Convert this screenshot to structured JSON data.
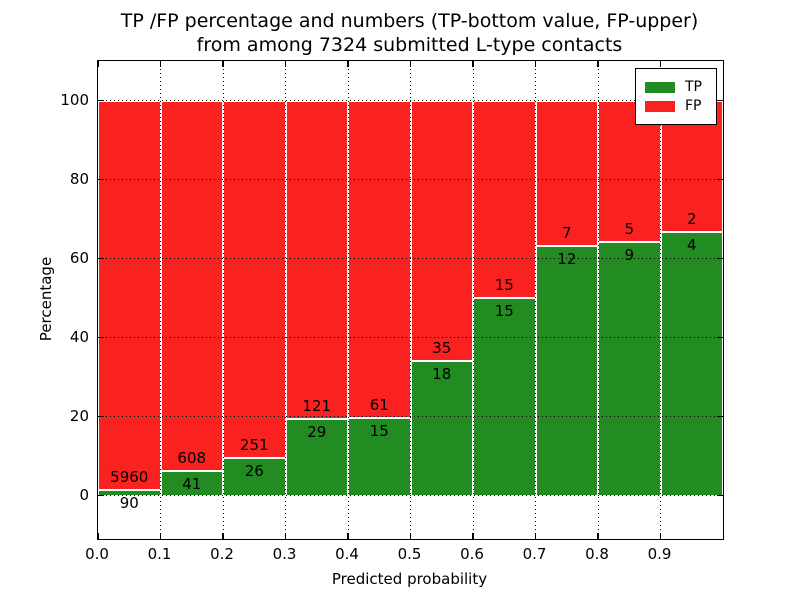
{
  "title": {
    "line1": "TP /FP percentage and numbers (TP-bottom value, FP-upper)",
    "line2": "from among 7324 submitted L-type contacts"
  },
  "colors": {
    "tp": "#228b22",
    "fp": "#fa2121",
    "grid": "#000000",
    "spine": "#000000",
    "background": "#ffffff"
  },
  "legend": {
    "position": "upper right",
    "items": [
      {
        "label": "TP",
        "color_key": "tp"
      },
      {
        "label": "FP",
        "color_key": "fp"
      }
    ]
  },
  "chart_data": {
    "type": "bar",
    "subtype": "stacked-100-percent",
    "title": "TP /FP percentage and numbers (TP-bottom value, FP-upper)\nfrom among 7324 submitted L-type contacts",
    "xlabel": "Predicted probability",
    "ylabel": "Percentage",
    "total_submitted": 7324,
    "bin_edges": [
      0.0,
      0.1,
      0.2,
      0.3,
      0.4,
      0.5,
      0.6,
      0.7,
      0.8,
      0.9,
      1.0
    ],
    "series": [
      {
        "name": "TP",
        "counts": [
          90,
          41,
          26,
          29,
          15,
          18,
          15,
          12,
          9,
          4
        ]
      },
      {
        "name": "FP",
        "counts": [
          5960,
          608,
          251,
          121,
          61,
          35,
          15,
          7,
          5,
          2
        ]
      }
    ],
    "tp_percent": [
      1.49,
      6.32,
      9.39,
      19.33,
      19.74,
      33.96,
      50.0,
      63.16,
      64.29,
      66.67
    ],
    "bar_total_percent": 100,
    "xticks": [
      "0.0",
      "0.1",
      "0.2",
      "0.3",
      "0.4",
      "0.5",
      "0.6",
      "0.7",
      "0.8",
      "0.9"
    ],
    "yticks": [
      0,
      20,
      40,
      60,
      80,
      100
    ],
    "xlim": [
      0.0,
      1.0
    ],
    "ylim": [
      -11,
      110
    ],
    "grid": true,
    "legend_entries": [
      "TP",
      "FP"
    ],
    "legend_position": "upper right"
  }
}
